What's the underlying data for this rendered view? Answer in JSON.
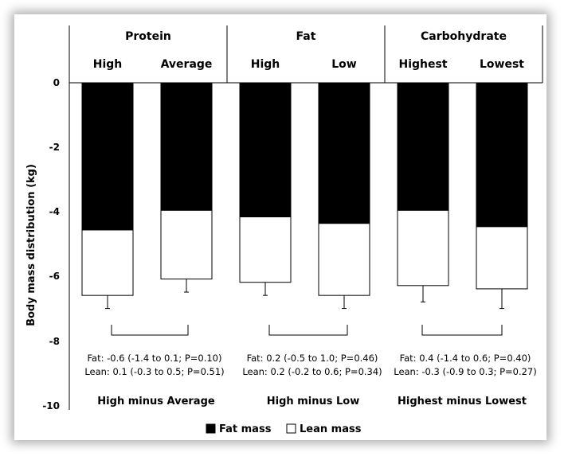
{
  "chart_data": {
    "type": "bar",
    "stacked": true,
    "ylabel": "Body mass distribution (kg)",
    "ylim": [
      -10,
      0
    ],
    "yticks": [
      "0",
      "-2",
      "-4",
      "-6",
      "-8",
      "-10"
    ],
    "grid": false,
    "legend_position": "bottom",
    "groups": [
      {
        "name": "Protein",
        "categories": [
          "High",
          "Average"
        ],
        "comparison": "High minus Average",
        "fat_stat": "Fat: -0.6 (-1.4 to 0.1; P=0.10)",
        "lean_stat": "Lean: 0.1 (-0.3 to 0.5; P=0.51)"
      },
      {
        "name": "Fat",
        "categories": [
          "High",
          "Low"
        ],
        "comparison": "High minus Low",
        "fat_stat": "Fat: 0.2 (-0.5 to 1.0; P=0.46)",
        "lean_stat": "Lean: 0.2 (-0.2 to 0.6; P=0.34)"
      },
      {
        "name": "Carbohydrate",
        "categories": [
          "Highest",
          "Lowest"
        ],
        "comparison": "Highest minus Lowest",
        "fat_stat": "Fat: 0.4 (-1.4 to 0.6; P=0.40)",
        "lean_stat": "Lean: -0.3 (-0.9 to 0.3; P=0.27)"
      }
    ],
    "series": [
      {
        "name": "Fat mass",
        "color": "#000000",
        "values": [
          -4.5,
          -3.9,
          -4.1,
          -4.3,
          -3.9,
          -4.4
        ]
      },
      {
        "name": "Lean mass",
        "color": "#ffffff",
        "values": [
          -2.0,
          -2.1,
          -2.0,
          -2.2,
          -2.3,
          -1.9
        ]
      }
    ],
    "totals": [
      -6.5,
      -6.0,
      -6.1,
      -6.5,
      -6.2,
      -6.3
    ],
    "error_bar_ends": [
      -6.9,
      -6.4,
      -6.5,
      -6.9,
      -6.7,
      -6.9
    ]
  }
}
